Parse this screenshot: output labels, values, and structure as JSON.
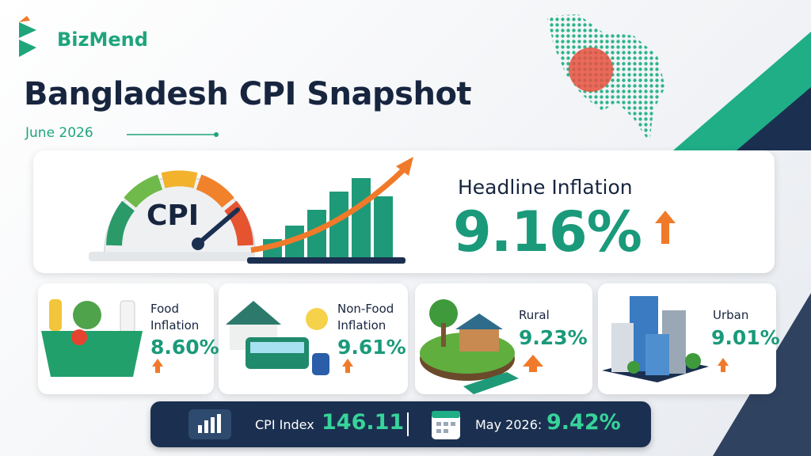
{
  "brand": "BizMend",
  "header": {
    "title": "Bangladesh CPI Snapshot",
    "subtitle": "June 2026"
  },
  "headline": {
    "gauge_label": "CPI",
    "label": "Headline Inflation",
    "value": "9.16%"
  },
  "cards": [
    {
      "label": "Food Inflation",
      "value": "8.60%"
    },
    {
      "label": "Non-Food Inflation",
      "value": "9.61%"
    },
    {
      "label": "Rural",
      "value": "9.23%"
    },
    {
      "label": "Urban",
      "value": "9.01%"
    }
  ],
  "footer": {
    "index_label": "CPI Index",
    "index_value": "146.11",
    "previous_label": "May 2026:",
    "previous_value": "9.42%"
  }
}
